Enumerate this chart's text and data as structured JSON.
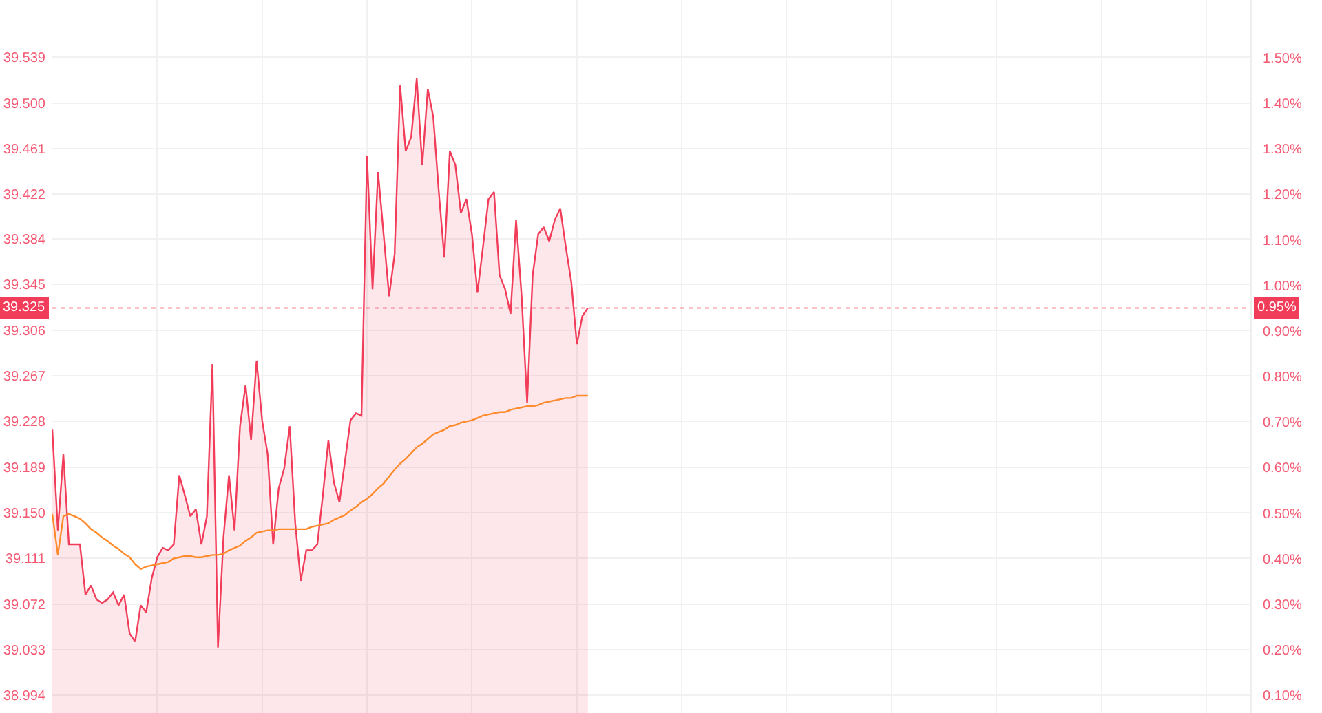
{
  "chart_data": {
    "type": "area",
    "categories": [
      null,
      null,
      null,
      null,
      null,
      null,
      null,
      null,
      null,
      null,
      null,
      null,
      null,
      null,
      null,
      null,
      null,
      null,
      null,
      null,
      null,
      null,
      null,
      null,
      null,
      null,
      null,
      null,
      null,
      null,
      null,
      null,
      null,
      null,
      null,
      null,
      null,
      null,
      null,
      null,
      null,
      null,
      null,
      null,
      null,
      null,
      null,
      null,
      null,
      null,
      null,
      null,
      null,
      null,
      null,
      null,
      null,
      null,
      null,
      null,
      null,
      null,
      null,
      null,
      null,
      null,
      null,
      null,
      null,
      null,
      null,
      null,
      null,
      null,
      null,
      null,
      null,
      null,
      null,
      null,
      null,
      null,
      null,
      null,
      null,
      null,
      null,
      null,
      null,
      null,
      null,
      null,
      null,
      null,
      null,
      null,
      null,
      null,
      null,
      null,
      null,
      null,
      null,
      null,
      null,
      null,
      null,
      null,
      null,
      null,
      null,
      null,
      null,
      null,
      null,
      null,
      null,
      null,
      null,
      null,
      null,
      null,
      null,
      null,
      null,
      null,
      null,
      null,
      null,
      null,
      null,
      null,
      null,
      null,
      null,
      null,
      null,
      null,
      null,
      null,
      null,
      null,
      null,
      null,
      null,
      null,
      null,
      null,
      null,
      null,
      null,
      null,
      null,
      null,
      null,
      null,
      null,
      null,
      null,
      null,
      null,
      null,
      null,
      null,
      null,
      null,
      null,
      null,
      null,
      null,
      null,
      null,
      null,
      null,
      null,
      null,
      null,
      null,
      null,
      null,
      null,
      null,
      null,
      null,
      null,
      null,
      null,
      null,
      null,
      null,
      null,
      null,
      null,
      null,
      null,
      null,
      null,
      null,
      null,
      null,
      null,
      null,
      null,
      null,
      null,
      null,
      null,
      null,
      null,
      null,
      null,
      null,
      null,
      null,
      null,
      null,
      null,
      null
    ],
    "series": [
      {
        "color": "#f23d5a",
        "values": [
          39.221,
          39.135,
          39.2,
          39.123,
          39.123,
          39.123,
          39.08,
          39.088,
          39.076,
          39.073,
          39.076,
          39.082,
          39.071,
          39.08,
          39.047,
          39.04,
          39.071,
          39.065,
          39.094,
          39.112,
          39.12,
          39.118,
          39.123,
          39.182,
          39.165,
          39.147,
          39.153,
          39.123,
          39.147,
          39.277,
          39.035,
          39.129,
          39.182,
          39.135,
          39.224,
          39.259,
          39.212,
          39.28,
          39.229,
          39.2,
          39.123,
          39.171,
          39.188,
          39.224,
          39.141,
          39.092,
          39.118,
          39.118,
          39.123,
          39.165,
          39.212,
          39.176,
          39.159,
          39.194,
          39.229,
          39.235,
          39.233,
          39.455,
          39.341,
          39.441,
          39.388,
          39.335,
          39.371,
          39.515,
          39.459,
          39.471,
          39.521,
          39.447,
          39.512,
          39.488,
          39.424,
          39.368,
          39.459,
          39.447,
          39.406,
          39.418,
          39.388,
          39.338,
          39.377,
          39.418,
          39.424,
          39.353,
          39.341,
          39.32,
          39.4,
          39.335,
          39.244,
          39.353,
          39.388,
          39.394,
          39.382,
          39.4,
          39.41,
          39.377,
          39.347,
          39.294,
          39.318,
          39.325,
          null,
          null,
          null,
          null,
          null,
          null,
          null,
          null,
          null,
          null,
          null,
          null,
          null,
          null,
          null,
          null,
          null,
          null,
          null,
          null,
          null,
          null,
          null,
          null,
          null,
          null,
          null,
          null,
          null,
          null,
          null,
          null,
          null,
          null,
          null,
          null,
          null,
          null,
          null,
          null,
          null,
          null,
          null,
          null,
          null,
          null,
          null,
          null,
          null,
          null,
          null,
          null,
          null,
          null,
          null,
          null,
          null,
          null,
          null,
          null,
          null,
          null,
          null,
          null,
          null,
          null,
          null,
          null,
          null,
          null,
          null,
          null,
          null,
          null,
          null,
          null,
          null,
          null,
          null,
          null,
          null,
          null,
          null,
          null,
          null,
          null,
          null,
          null,
          null,
          null,
          null,
          null,
          null,
          null,
          null,
          null,
          null,
          null,
          null,
          null,
          null,
          null,
          null,
          null,
          null,
          null,
          null,
          null,
          null,
          null,
          null,
          null,
          null,
          null,
          null,
          null,
          null,
          null,
          null,
          null
        ]
      },
      {
        "type": "line",
        "color": "#ff8a2b",
        "values": [
          39.149,
          39.114,
          39.147,
          39.149,
          39.147,
          39.145,
          39.141,
          39.136,
          39.133,
          39.129,
          39.126,
          39.122,
          39.119,
          39.115,
          39.112,
          39.106,
          39.102,
          39.104,
          39.105,
          39.106,
          39.107,
          39.108,
          39.111,
          39.112,
          39.113,
          39.113,
          39.112,
          39.112,
          39.113,
          39.114,
          39.114,
          39.115,
          39.118,
          39.12,
          39.122,
          39.126,
          39.129,
          39.133,
          39.134,
          39.135,
          39.135,
          39.136,
          39.136,
          39.136,
          39.136,
          39.136,
          39.136,
          39.138,
          39.139,
          39.14,
          39.141,
          39.144,
          39.146,
          39.148,
          39.152,
          39.155,
          39.159,
          39.162,
          39.166,
          39.171,
          39.175,
          39.181,
          39.187,
          39.192,
          39.196,
          39.201,
          39.206,
          39.209,
          39.213,
          39.217,
          39.219,
          39.221,
          39.224,
          39.225,
          39.227,
          39.228,
          39.229,
          39.231,
          39.233,
          39.234,
          39.235,
          39.236,
          39.236,
          39.238,
          39.239,
          39.24,
          39.241,
          39.241,
          39.242,
          39.244,
          39.245,
          39.246,
          39.247,
          39.248,
          39.248,
          39.25,
          39.25,
          39.25,
          null,
          null,
          null,
          null,
          null,
          null,
          null,
          null,
          null,
          null,
          null,
          null,
          null,
          null,
          null,
          null,
          null,
          null,
          null,
          null,
          null,
          null,
          null,
          null,
          null,
          null,
          null,
          null,
          null,
          null,
          null,
          null,
          null,
          null,
          null,
          null,
          null,
          null,
          null,
          null,
          null,
          null,
          null,
          null,
          null,
          null,
          null,
          null,
          null,
          null,
          null,
          null,
          null,
          null,
          null,
          null,
          null,
          null,
          null,
          null,
          null,
          null,
          null,
          null,
          null,
          null,
          null,
          null,
          null,
          null,
          null,
          null,
          null,
          null,
          null,
          null,
          null,
          null,
          null,
          null,
          null,
          null,
          null,
          null,
          null,
          null,
          null,
          null,
          null,
          null,
          null,
          null,
          null,
          null,
          null,
          null,
          null,
          null,
          null,
          null,
          null,
          null,
          null,
          null,
          null,
          null,
          null,
          null,
          null,
          null,
          null,
          null,
          null,
          null,
          null,
          null,
          null,
          null,
          null,
          null
        ]
      }
    ],
    "ylim": [
      38.979,
      39.588
    ],
    "yticks": [
      38.994,
      39.033,
      39.072,
      39.111,
      {
        "value": 39.15,
        "label": "39.150"
      },
      39.189,
      39.228,
      39.267,
      39.306,
      39.345,
      39.384,
      39.422,
      39.461,
      {
        "value": 39.5,
        "label": "39.500"
      },
      39.539
    ],
    "y2lim": [
      0.061,
      1.627
    ],
    "y2ticks": [
      {
        "value": 0.1,
        "label": "0.10%"
      },
      {
        "value": 0.2,
        "label": "0.20%"
      },
      {
        "value": 0.3,
        "label": "0.30%"
      },
      {
        "value": 0.4,
        "label": "0.40%"
      },
      {
        "value": 0.5,
        "label": "0.50%"
      },
      {
        "value": 0.6,
        "label": "0.60%"
      },
      {
        "value": 0.7,
        "label": "0.70%"
      },
      {
        "value": 0.8,
        "label": "0.80%"
      },
      {
        "value": 0.9,
        "label": "0.90%"
      },
      {
        "value": 1.0,
        "label": "1.00%"
      },
      {
        "value": 1.1,
        "label": "1.10%"
      },
      {
        "value": 1.2,
        "label": "1.20%"
      },
      {
        "value": 1.3,
        "label": "1.30%"
      },
      {
        "value": 1.4,
        "label": "1.40%"
      },
      {
        "value": 1.5,
        "label": "1.50%"
      }
    ],
    "ref_lines": [
      {
        "axis": "y",
        "value": 39.325,
        "label": "39.325",
        "color": "#f23d5a",
        "line_style": "dotted"
      }
    ],
    "annotations": [
      {
        "text": "0.95%",
        "y": 39.325
      }
    ],
    "grid": true,
    "legend": false,
    "tick_labels": "y",
    "marker": "none",
    "line_style": "solid"
  }
}
